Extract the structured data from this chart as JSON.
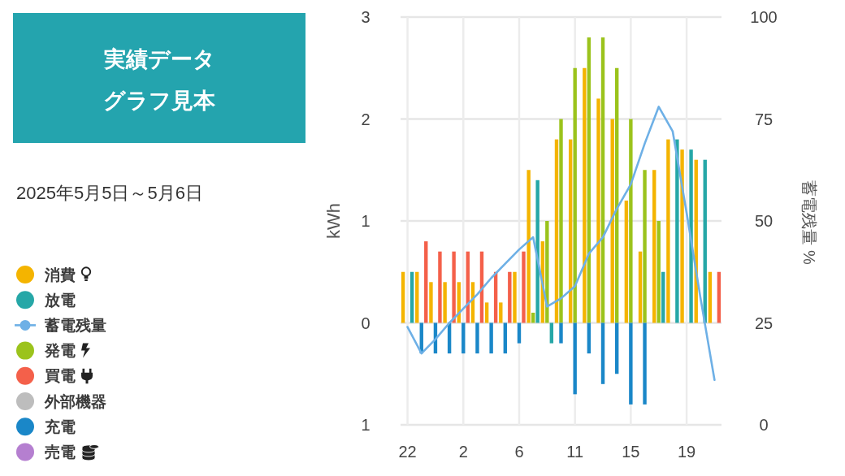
{
  "chart_data": {
    "type": "bar",
    "title": "実績データグラフ見本",
    "subtitle": "2025年5月5日～5月6日",
    "ylabel": "kWh",
    "y2label": "蓄電残量 %",
    "categories": [
      "22",
      null,
      null,
      null,
      "2",
      null,
      null,
      null,
      "6",
      null,
      null,
      null,
      "11",
      null,
      null,
      null,
      "15",
      null,
      null,
      null,
      "19",
      null,
      null
    ],
    "ylim": [
      -1,
      3
    ],
    "yticks": [
      {
        "value": -1,
        "label": "1"
      },
      0,
      1,
      2,
      3
    ],
    "y2lim": [
      0,
      100
    ],
    "y2ticks": [
      0,
      25,
      50,
      75,
      100
    ],
    "grid": true,
    "legend": "left",
    "series": [
      {
        "name": "消費",
        "color": "#f4b400",
        "values": [
          0.5,
          0.5,
          0.4,
          0.4,
          0.4,
          0.4,
          0.2,
          0.2,
          0.5,
          1.5,
          0.8,
          1.8,
          1.8,
          2.5,
          2.2,
          2.0,
          1.2,
          0.7,
          1.5,
          1.8,
          1.7,
          1.6,
          0.5
        ]
      },
      {
        "name": "放電",
        "color": "#26a7a7",
        "values": [
          0.5,
          null,
          null,
          null,
          null,
          null,
          null,
          null,
          null,
          1.4,
          -0.2,
          null,
          null,
          null,
          null,
          null,
          null,
          null,
          0.5,
          1.8,
          1.7,
          1.6,
          null
        ]
      },
      {
        "name": "蓄電残量",
        "type": "line",
        "axis": "y2",
        "color": "#6eb0e6",
        "values": [
          24,
          17.5,
          21,
          25,
          28.5,
          32,
          36,
          39.5,
          43,
          46,
          29,
          31,
          34,
          42,
          46,
          53,
          59,
          69,
          78,
          72,
          52,
          31,
          11
        ]
      },
      {
        "name": "発電",
        "color": "#9bc31c",
        "values": [
          null,
          null,
          null,
          null,
          null,
          null,
          null,
          null,
          null,
          0.1,
          1.0,
          2.0,
          2.5,
          2.8,
          2.8,
          2.5,
          2.0,
          1.5,
          1.0,
          null,
          null,
          null,
          null
        ]
      },
      {
        "name": "買電",
        "color": "#f4604a",
        "values": [
          null,
          0.8,
          0.7,
          0.7,
          0.7,
          0.7,
          0.5,
          0.5,
          0.7,
          null,
          null,
          null,
          null,
          null,
          null,
          null,
          null,
          null,
          null,
          null,
          null,
          null,
          0.5
        ]
      },
      {
        "name": "外部機器",
        "color": "#bdbdbd",
        "values": [
          null,
          null,
          null,
          null,
          null,
          null,
          null,
          null,
          null,
          null,
          null,
          null,
          null,
          null,
          null,
          null,
          null,
          null,
          null,
          null,
          null,
          null,
          null
        ]
      },
      {
        "name": "充電",
        "color": "#1a87c8",
        "values": [
          null,
          -0.3,
          -0.3,
          -0.3,
          -0.3,
          -0.3,
          -0.3,
          -0.3,
          -0.2,
          null,
          null,
          -0.2,
          -0.7,
          -0.3,
          -0.6,
          -0.5,
          -0.8,
          -0.8,
          null,
          null,
          null,
          null,
          null
        ]
      },
      {
        "name": "売電",
        "color": "#b57fd0",
        "values": [
          null,
          null,
          null,
          null,
          null,
          null,
          null,
          null,
          null,
          null,
          null,
          null,
          null,
          null,
          null,
          null,
          null,
          null,
          null,
          null,
          null,
          null,
          null
        ]
      }
    ]
  }
}
